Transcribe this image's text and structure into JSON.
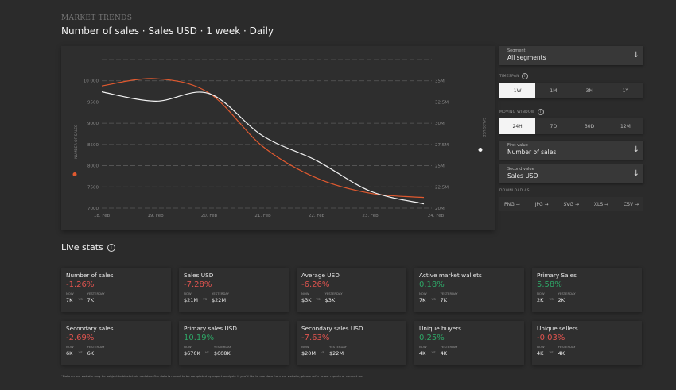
{
  "header": {
    "eyebrow": "MARKET TRENDS",
    "title": "Number of sales · Sales USD · 1 week · Daily"
  },
  "chart_data": {
    "type": "line",
    "x": [
      "18. Feb",
      "19. Feb",
      "20. Feb",
      "21. Feb",
      "22. Feb",
      "23. Feb",
      "24. Feb"
    ],
    "series": [
      {
        "name": "NUMBER OF SALES",
        "axis": "left",
        "color": "#e0592f",
        "values": [
          9880,
          10050,
          9710,
          8450,
          7710,
          7350,
          7250
        ]
      },
      {
        "name": "SALES USD",
        "axis": "right",
        "color": "#f2f2f2",
        "values": [
          33.7,
          32.6,
          33.5,
          28.5,
          25.6,
          22.0,
          20.5
        ]
      }
    ],
    "ylabel_left": "NUMBER OF SALES",
    "ylabel_right": "SALES USD",
    "ylim_left": [
      7000,
      10500
    ],
    "ylim_right": [
      20,
      37.5
    ],
    "yticks_left": [
      "7000",
      "7500",
      "8000",
      "8500",
      "9000",
      "9500",
      "10 000"
    ],
    "yticks_right": [
      "20M",
      "22.5M",
      "25M",
      "27.5M",
      "30M",
      "32.5M",
      "35M"
    ],
    "grid": true,
    "legend": "axis-labels"
  },
  "controls": {
    "segment": {
      "label": "Segment",
      "value": "All segments"
    },
    "timespan": {
      "label": "TIMESPAN",
      "options": [
        "1W",
        "1M",
        "3M",
        "1Y"
      ],
      "selected": "1W"
    },
    "moving_window": {
      "label": "MOVING WINDOW",
      "options": [
        "24H",
        "7D",
        "30D",
        "12M"
      ],
      "selected": "24H"
    },
    "first_value": {
      "label": "First value",
      "value": "Number of sales"
    },
    "second_value": {
      "label": "Second value",
      "value": "Sales USD"
    },
    "download": {
      "label": "DOWNLOAD AS",
      "options": [
        "PNG →",
        "JPG →",
        "SVG →",
        "XLS →",
        "CSV →"
      ]
    }
  },
  "live_stats": {
    "title": "Live stats",
    "now_label": "NOW",
    "yesterday_label": "YESTERDAY",
    "vs_label": "VS",
    "cards": [
      {
        "name": "Number of sales",
        "pct": "-1.26%",
        "trend": "neg",
        "now": "7K",
        "yesterday": "7K"
      },
      {
        "name": "Sales USD",
        "pct": "-7.28%",
        "trend": "neg",
        "now": "$21M",
        "yesterday": "$22M"
      },
      {
        "name": "Average USD",
        "pct": "-6.26%",
        "trend": "neg",
        "now": "$3K",
        "yesterday": "$3K"
      },
      {
        "name": "Active market wallets",
        "pct": "0.18%",
        "trend": "pos",
        "now": "7K",
        "yesterday": "7K"
      },
      {
        "name": "Primary Sales",
        "pct": "5.58%",
        "trend": "pos",
        "now": "2K",
        "yesterday": "2K"
      },
      {
        "name": "Secondary sales",
        "pct": "-2.69%",
        "trend": "neg",
        "now": "6K",
        "yesterday": "6K"
      },
      {
        "name": "Primary sales USD",
        "pct": "10.19%",
        "trend": "pos",
        "now": "$670K",
        "yesterday": "$608K"
      },
      {
        "name": "Secondary sales USD",
        "pct": "-7.63%",
        "trend": "neg",
        "now": "$20M",
        "yesterday": "$22M"
      },
      {
        "name": "Unique buyers",
        "pct": "0.25%",
        "trend": "pos",
        "now": "4K",
        "yesterday": "4K"
      },
      {
        "name": "Unique sellers",
        "pct": "-0.03%",
        "trend": "neg",
        "now": "4K",
        "yesterday": "4K"
      }
    ]
  },
  "footer": "*Data on our website may be subject to blockchain updates. Our data is meant to be completed by expert analysis. If you'd like to use data from our website, please refer to our reports or contact us."
}
